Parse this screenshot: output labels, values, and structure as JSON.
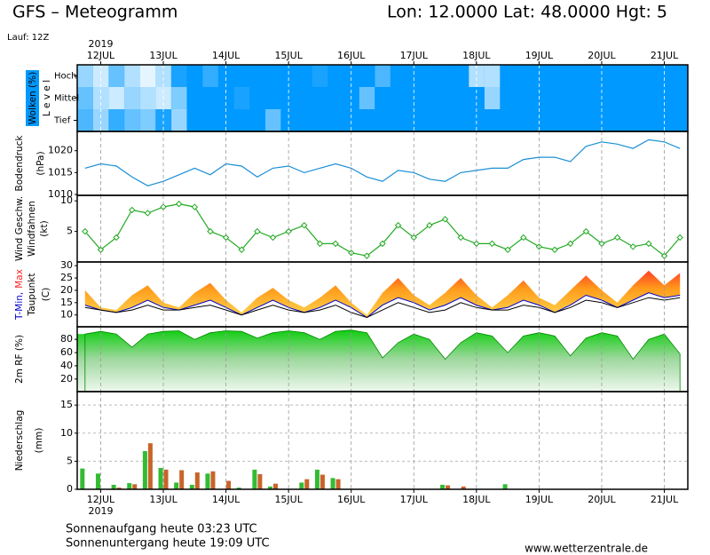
{
  "header": {
    "title": "GFS – Meteogramm",
    "location": "Lon: 12.0000 Lat: 48.0000 Hgt: 5",
    "run": "Lauf: 12Z"
  },
  "time_axis": {
    "year": "2019",
    "xlim": [
      -9,
      225
    ],
    "xticks": [
      {
        "value": 0,
        "label": "12JUL"
      },
      {
        "value": 24,
        "label": "13JUL"
      },
      {
        "value": 48,
        "label": "14JUL"
      },
      {
        "value": 72,
        "label": "15JUL"
      },
      {
        "value": 96,
        "label": "16JUL"
      },
      {
        "value": 120,
        "label": "17JUL"
      },
      {
        "value": 144,
        "label": "18JUL"
      },
      {
        "value": 168,
        "label": "19JUL"
      },
      {
        "value": 192,
        "label": "20JUL"
      },
      {
        "value": 216,
        "label": "21JUL"
      }
    ],
    "x": [
      -6,
      0,
      6,
      12,
      18,
      24,
      30,
      36,
      42,
      48,
      54,
      60,
      66,
      72,
      78,
      84,
      90,
      96,
      102,
      108,
      114,
      120,
      126,
      132,
      138,
      144,
      150,
      156,
      162,
      168,
      174,
      180,
      186,
      192,
      198,
      204,
      210,
      216,
      222
    ]
  },
  "chart_data": [
    {
      "type": "heatmap",
      "ylabel": [
        "Wolken (%)",
        "L e v e l"
      ],
      "color": "#0099ff",
      "series": [
        {
          "name": "Hoch",
          "values": [
            40,
            20,
            60,
            30,
            10,
            30,
            90,
            100,
            80,
            100,
            100,
            100,
            100,
            100,
            100,
            90,
            100,
            100,
            100,
            70,
            100,
            100,
            100,
            100,
            100,
            30,
            30,
            100,
            100,
            100,
            100,
            100,
            100,
            100,
            100,
            100,
            100,
            100,
            100
          ]
        },
        {
          "name": "Mittel",
          "values": [
            60,
            30,
            20,
            40,
            30,
            20,
            50,
            100,
            100,
            100,
            90,
            100,
            100,
            100,
            100,
            100,
            100,
            100,
            60,
            100,
            100,
            100,
            100,
            100,
            100,
            100,
            40,
            100,
            100,
            100,
            100,
            100,
            100,
            100,
            100,
            100,
            100,
            100,
            100
          ]
        },
        {
          "name": "Tief",
          "values": [
            70,
            40,
            80,
            60,
            50,
            90,
            40,
            100,
            100,
            100,
            100,
            100,
            60,
            100,
            100,
            100,
            100,
            100,
            100,
            100,
            100,
            100,
            100,
            100,
            100,
            100,
            100,
            100,
            100,
            100,
            100,
            100,
            100,
            100,
            100,
            100,
            100,
            100,
            100
          ]
        }
      ]
    },
    {
      "type": "line",
      "ylabel": [
        "Bodendruck",
        "(hPa)"
      ],
      "ylabel_colors": [
        "#000000",
        "#000000"
      ],
      "color": "#1a8fd6",
      "ylim": [
        1009.8,
        1024.4
      ],
      "yticks": [
        1010,
        1015,
        1020
      ],
      "values": [
        1016,
        1017,
        1016.5,
        1014,
        1012,
        1013,
        1014.5,
        1016,
        1014.5,
        1017,
        1016.5,
        1014,
        1016,
        1016.5,
        1015,
        1016,
        1017,
        1016,
        1014,
        1013,
        1015.5,
        1015,
        1013.5,
        1013,
        1015,
        1015.5,
        1016,
        1016,
        1018,
        1018.5,
        1018.5,
        1017.5,
        1021,
        1022,
        1021.5,
        1020.5,
        1022.5,
        1022,
        1020.5
      ]
    },
    {
      "type": "markerline",
      "ylabel": [
        "Wind Geschw.",
        "Windfahnen",
        "(kt)"
      ],
      "ylabel_colors": [
        "#22aa22",
        "#000000",
        "#000000"
      ],
      "color": "#22aa22",
      "ylim": [
        0,
        10.9
      ],
      "yticks": [
        5,
        10
      ],
      "values": [
        5,
        2,
        4,
        8.5,
        8,
        9,
        9.5,
        9,
        5,
        4,
        2,
        5,
        4,
        5,
        6,
        3,
        3,
        1.5,
        1,
        3,
        6,
        4,
        6,
        7,
        4,
        3,
        3,
        2,
        4,
        2.5,
        2,
        3,
        5,
        3,
        4,
        2.5,
        3,
        1,
        4
      ]
    },
    {
      "type": "band",
      "ylabel": [
        "(C)"
      ],
      "ylim": [
        5.2,
        31.5
      ],
      "yticks": [
        10,
        15,
        20,
        25,
        30
      ],
      "series": [
        {
          "name": "Max",
          "color": "#ff2222",
          "values": [
            20,
            13,
            12,
            18,
            22,
            15,
            13,
            19,
            23,
            16,
            11,
            17,
            21,
            16,
            13,
            17,
            22,
            15,
            10,
            19,
            25,
            18,
            14,
            19,
            25,
            18,
            13,
            18,
            24,
            17,
            14,
            20,
            26,
            20,
            15,
            22,
            28,
            22,
            27
          ]
        },
        {
          "name": "T-Min,",
          "color": "#0000cc",
          "values": [
            14,
            12,
            11,
            13,
            16,
            13,
            12,
            14,
            16,
            13,
            10,
            13,
            16,
            13,
            11,
            13,
            16,
            13,
            9,
            14,
            17,
            15,
            12,
            14,
            17,
            14,
            12,
            13,
            16,
            14,
            11,
            14,
            18,
            16,
            13,
            16,
            19,
            17,
            18
          ]
        },
        {
          "name": "Taupunkt",
          "color": "#000000",
          "values": [
            13,
            12,
            11,
            12,
            14,
            12,
            12,
            13,
            14,
            12,
            10,
            12,
            14,
            12,
            11,
            12,
            14,
            11,
            9,
            12,
            15,
            13,
            11,
            12,
            15,
            13,
            12,
            12,
            14,
            13,
            11,
            13,
            16,
            15,
            13,
            15,
            17,
            16,
            17
          ]
        }
      ]
    },
    {
      "type": "area",
      "ylabel": [
        "2m RF (%)"
      ],
      "ylabel_colors": [
        "#22aa22"
      ],
      "color": "#00bb00",
      "ylim": [
        1,
        99
      ],
      "yticks": [
        20,
        40,
        60,
        80
      ],
      "values": [
        88,
        92,
        88,
        68,
        88,
        92,
        93,
        80,
        90,
        93,
        92,
        82,
        90,
        93,
        90,
        80,
        92,
        94,
        90,
        52,
        75,
        88,
        80,
        50,
        75,
        90,
        85,
        60,
        85,
        90,
        85,
        55,
        82,
        90,
        85,
        50,
        80,
        88,
        58
      ]
    },
    {
      "type": "bar",
      "ylabel": [
        "Niederschlag",
        "(mm)"
      ],
      "ylabel_colors": [
        "#000000",
        "#000000"
      ],
      "ylim": [
        0,
        17.4
      ],
      "yticks": [
        0,
        5,
        10,
        15
      ],
      "series": [
        {
          "color": "#33bb33",
          "values": [
            3.7,
            2.8,
            0.8,
            1.1,
            6.8,
            3.8,
            1.2,
            0.8,
            2.8,
            0,
            0.3,
            3.5,
            0.5,
            0,
            1.2,
            3.5,
            2,
            0,
            0,
            0,
            0,
            0,
            0,
            0.8,
            0,
            0,
            0,
            0.9,
            0,
            0,
            0,
            0,
            0,
            0,
            0,
            0,
            0,
            0,
            0
          ]
        },
        {
          "color": "#c8642a",
          "values": [
            0,
            0,
            0.3,
            0.9,
            8.2,
            3.5,
            3.4,
            3,
            3.2,
            1.5,
            0,
            2.7,
            1,
            0,
            1.8,
            2.6,
            1.8,
            0,
            0,
            0,
            0,
            0,
            0,
            0.7,
            0.5,
            0,
            0,
            0,
            0,
            0,
            0,
            0,
            0,
            0,
            0,
            0,
            0,
            0,
            0
          ]
        }
      ]
    }
  ],
  "footer": {
    "sunrise": "Sonnenaufgang heute 03:23 UTC",
    "sunset": "Sonnenuntergang heute 19:09 UTC",
    "source": "www.wetterzentrale.de"
  }
}
